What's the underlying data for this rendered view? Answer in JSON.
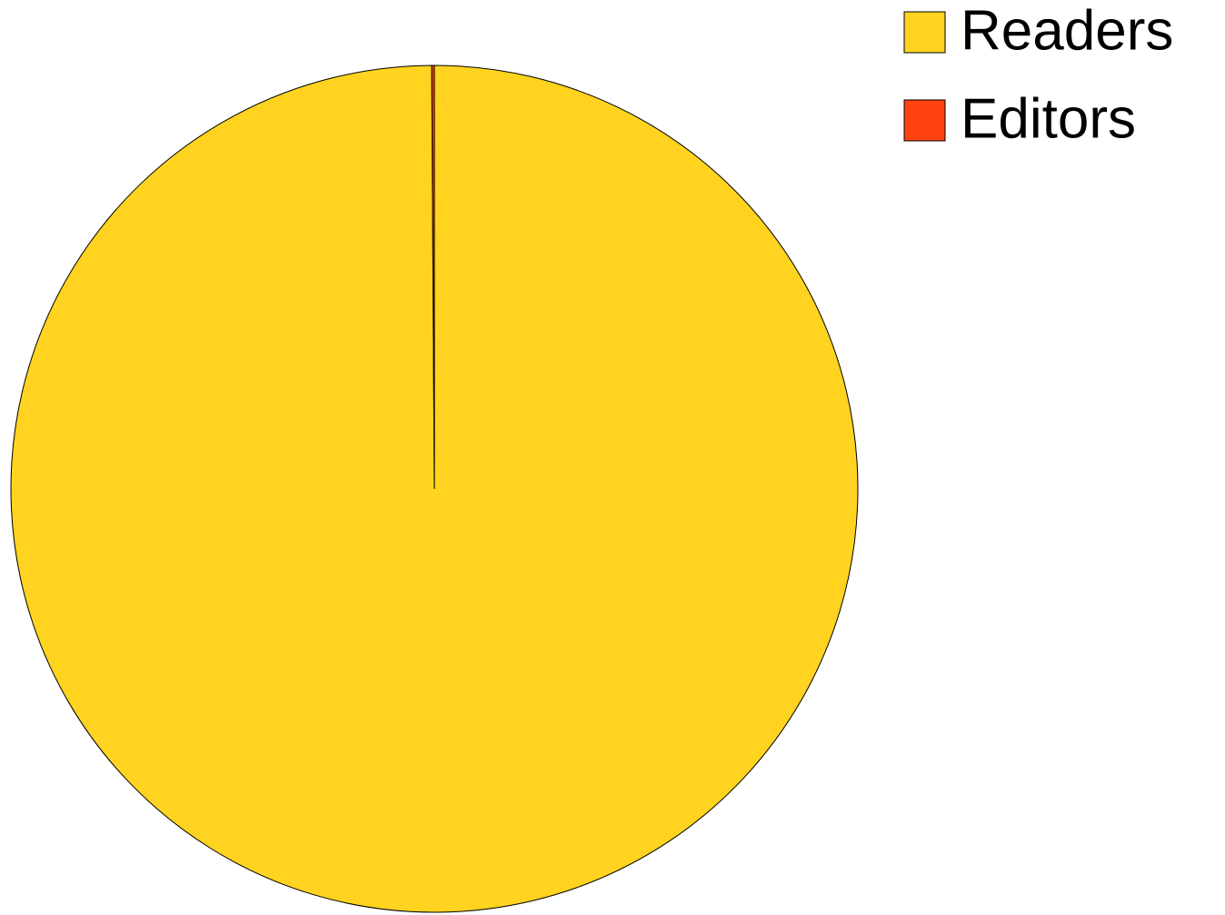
{
  "chart_data": {
    "type": "pie",
    "categories": [
      "Readers",
      "Editors"
    ],
    "values": [
      99.9,
      0.1
    ],
    "colors": [
      "#ffd320",
      "#ff420e"
    ],
    "legend": "top-right"
  }
}
